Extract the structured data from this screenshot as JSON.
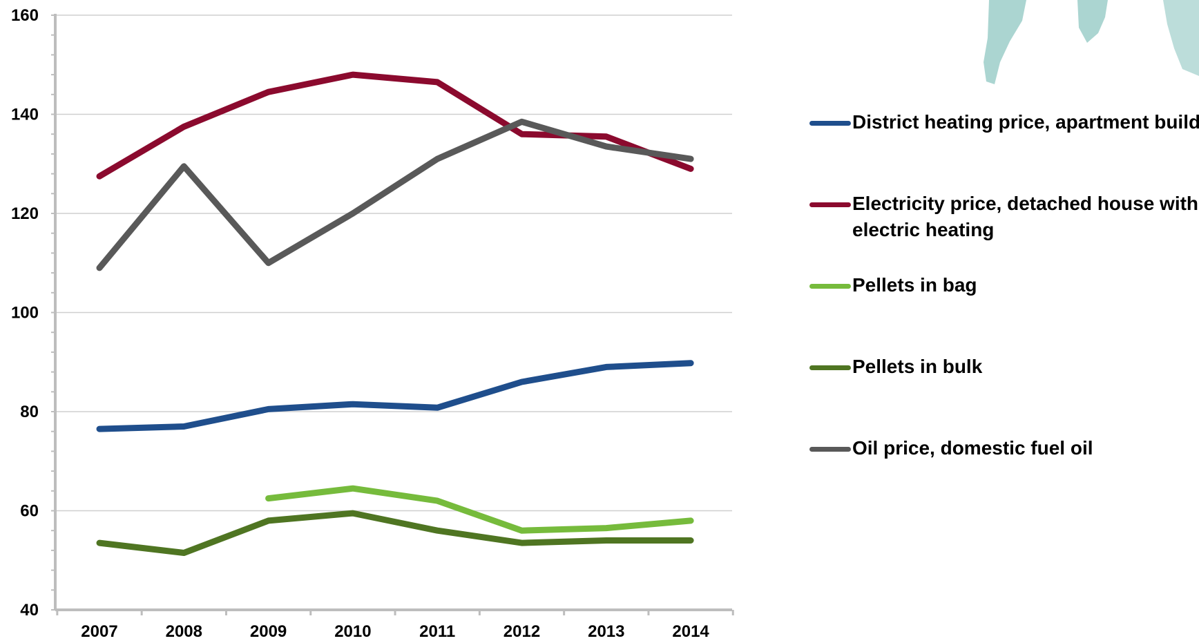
{
  "chart_data": {
    "type": "line",
    "title": "",
    "xlabel": "",
    "ylabel": "",
    "categories": [
      "2007",
      "2008",
      "2009",
      "2010",
      "2011",
      "2012",
      "2013",
      "2014"
    ],
    "ylim": [
      40,
      160
    ],
    "yticks": [
      "40",
      "60",
      "80",
      "100",
      "120",
      "140",
      "160"
    ],
    "grid": true,
    "legend_position": "right",
    "series": [
      {
        "name": "District heating price, apartment building",
        "color": "#1f4e8c",
        "values": [
          76.5,
          77,
          80.5,
          81.5,
          80.8,
          86,
          89,
          89.8
        ]
      },
      {
        "name": "Electricity price, detached house with electric heating",
        "color": "#8b0a2e",
        "values": [
          127.5,
          137.5,
          144.5,
          148,
          146.5,
          136,
          135.5,
          129
        ]
      },
      {
        "name": "Pellets in bag",
        "color": "#76bb3c",
        "values": [
          null,
          null,
          62.5,
          64.5,
          62,
          56,
          56.5,
          58
        ]
      },
      {
        "name": "Pellets in bulk",
        "color": "#4f7522",
        "values": [
          53.5,
          51.5,
          58,
          59.5,
          56,
          53.5,
          54,
          54
        ]
      },
      {
        "name": "Oil price, domestic fuel oil",
        "color": "#595959",
        "values": [
          109,
          129.5,
          110,
          120,
          131,
          138.5,
          133.5,
          131
        ]
      }
    ]
  }
}
